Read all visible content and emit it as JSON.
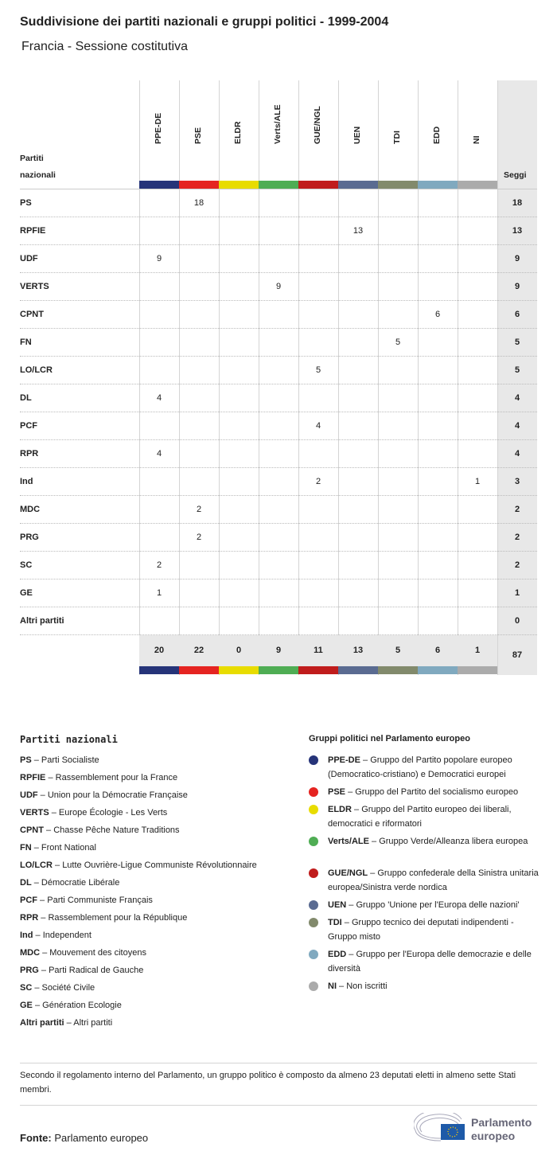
{
  "title": "Suddivisione dei partiti nazionali e gruppi politici - 1999-2004",
  "subtitle": "Francia - Sessione costitutiva",
  "chart_data": {
    "type": "table",
    "row_header": "Partiti nazionali",
    "total_header": "Seggi",
    "groups": [
      {
        "name": "PPE-DE",
        "color": "#263479"
      },
      {
        "name": "PSE",
        "color": "#e52421"
      },
      {
        "name": "ELDR",
        "color": "#e8dc00"
      },
      {
        "name": "Verts/ALE",
        "color": "#4fad54"
      },
      {
        "name": "GUE/NGL",
        "color": "#c01c1c"
      },
      {
        "name": "UEN",
        "color": "#5a6b91"
      },
      {
        "name": "TDI",
        "color": "#828a6c"
      },
      {
        "name": "EDD",
        "color": "#80a9bf"
      },
      {
        "name": "NI",
        "color": "#ababab"
      }
    ],
    "rows": [
      {
        "party": "PS",
        "values": [
          null,
          18,
          null,
          null,
          null,
          null,
          null,
          null,
          null
        ],
        "total": 18
      },
      {
        "party": "RPFIE",
        "values": [
          null,
          null,
          null,
          null,
          null,
          13,
          null,
          null,
          null
        ],
        "total": 13
      },
      {
        "party": "UDF",
        "values": [
          9,
          null,
          null,
          null,
          null,
          null,
          null,
          null,
          null
        ],
        "total": 9
      },
      {
        "party": "VERTS",
        "values": [
          null,
          null,
          null,
          9,
          null,
          null,
          null,
          null,
          null
        ],
        "total": 9
      },
      {
        "party": "CPNT",
        "values": [
          null,
          null,
          null,
          null,
          null,
          null,
          null,
          6,
          null
        ],
        "total": 6
      },
      {
        "party": "FN",
        "values": [
          null,
          null,
          null,
          null,
          null,
          null,
          5,
          null,
          null
        ],
        "total": 5
      },
      {
        "party": "LO/LCR",
        "values": [
          null,
          null,
          null,
          null,
          5,
          null,
          null,
          null,
          null
        ],
        "total": 5
      },
      {
        "party": "DL",
        "values": [
          4,
          null,
          null,
          null,
          null,
          null,
          null,
          null,
          null
        ],
        "total": 4
      },
      {
        "party": "PCF",
        "values": [
          null,
          null,
          null,
          null,
          4,
          null,
          null,
          null,
          null
        ],
        "total": 4
      },
      {
        "party": "RPR",
        "values": [
          4,
          null,
          null,
          null,
          null,
          null,
          null,
          null,
          null
        ],
        "total": 4
      },
      {
        "party": "Ind",
        "values": [
          null,
          null,
          null,
          null,
          2,
          null,
          null,
          null,
          1
        ],
        "total": 3
      },
      {
        "party": "MDC",
        "values": [
          null,
          2,
          null,
          null,
          null,
          null,
          null,
          null,
          null
        ],
        "total": 2
      },
      {
        "party": "PRG",
        "values": [
          null,
          2,
          null,
          null,
          null,
          null,
          null,
          null,
          null
        ],
        "total": 2
      },
      {
        "party": "SC",
        "values": [
          2,
          null,
          null,
          null,
          null,
          null,
          null,
          null,
          null
        ],
        "total": 2
      },
      {
        "party": "GE",
        "values": [
          1,
          null,
          null,
          null,
          null,
          null,
          null,
          null,
          null
        ],
        "total": 1
      },
      {
        "party": "Altri partiti",
        "values": [
          null,
          null,
          null,
          null,
          null,
          null,
          null,
          null,
          null
        ],
        "total": 0
      }
    ],
    "column_totals": [
      20,
      22,
      0,
      9,
      11,
      13,
      5,
      6,
      1
    ],
    "grand_total": 87
  },
  "legend_national": {
    "title": "Partiti nazionali",
    "items": [
      {
        "abbr": "PS",
        "name": "Parti Socialiste"
      },
      {
        "abbr": "RPFIE",
        "name": "Rassemblement pour la France"
      },
      {
        "abbr": "UDF",
        "name": "Union pour la Démocratie Française"
      },
      {
        "abbr": "VERTS",
        "name": "Europe Écologie - Les Verts"
      },
      {
        "abbr": "CPNT",
        "name": "Chasse Pêche Nature Traditions"
      },
      {
        "abbr": "FN",
        "name": "Front National"
      },
      {
        "abbr": "LO/LCR",
        "name": "Lutte Ouvrière-Ligue Communiste Révolutionnaire"
      },
      {
        "abbr": "DL",
        "name": "Démocratie Libérale"
      },
      {
        "abbr": "PCF",
        "name": "Parti Communiste Français"
      },
      {
        "abbr": "RPR",
        "name": "Rassemblement pour la République"
      },
      {
        "abbr": "Ind",
        "name": "Independent"
      },
      {
        "abbr": "MDC",
        "name": "Mouvement des citoyens"
      },
      {
        "abbr": "PRG",
        "name": "Parti Radical de Gauche"
      },
      {
        "abbr": "SC",
        "name": "Société Civile"
      },
      {
        "abbr": "GE",
        "name": "Génération Ecologie"
      },
      {
        "abbr": "Altri partiti",
        "name": "Altri partiti"
      }
    ]
  },
  "legend_groups": {
    "title": "Gruppi politici nel Parlamento europeo",
    "items": [
      {
        "abbr": "PPE-DE",
        "name": "Gruppo del Partito popolare europeo (Democratico-cristiano) e Democratici europei"
      },
      {
        "abbr": "PSE",
        "name": "Gruppo del Partito del socialismo europeo"
      },
      {
        "abbr": "ELDR",
        "name": "Gruppo del Partito europeo dei liberali, democratici e riformatori"
      },
      {
        "abbr": "Verts/ALE",
        "name": "Gruppo Verde/Alleanza libera europea"
      },
      {
        "abbr": "GUE/NGL",
        "name": "Gruppo confederale della Sinistra unitaria europea/Sinistra verde nordica"
      },
      {
        "abbr": "UEN",
        "name": "Gruppo 'Unione per l'Europa delle nazioni'"
      },
      {
        "abbr": "TDI",
        "name": "Gruppo tecnico dei deputati indipendenti - Gruppo misto"
      },
      {
        "abbr": "EDD",
        "name": "Gruppo per l'Europa delle democrazie e delle diversità"
      },
      {
        "abbr": "NI",
        "name": "Non iscritti"
      }
    ]
  },
  "note": "Secondo il regolamento interno del Parlamento, un gruppo politico è composto da almeno 23 deputati eletti in almeno sette Stati membri.",
  "source_label": "Fonte:",
  "source": "Parlamento europeo",
  "logo_text": "Parlamento europeo"
}
